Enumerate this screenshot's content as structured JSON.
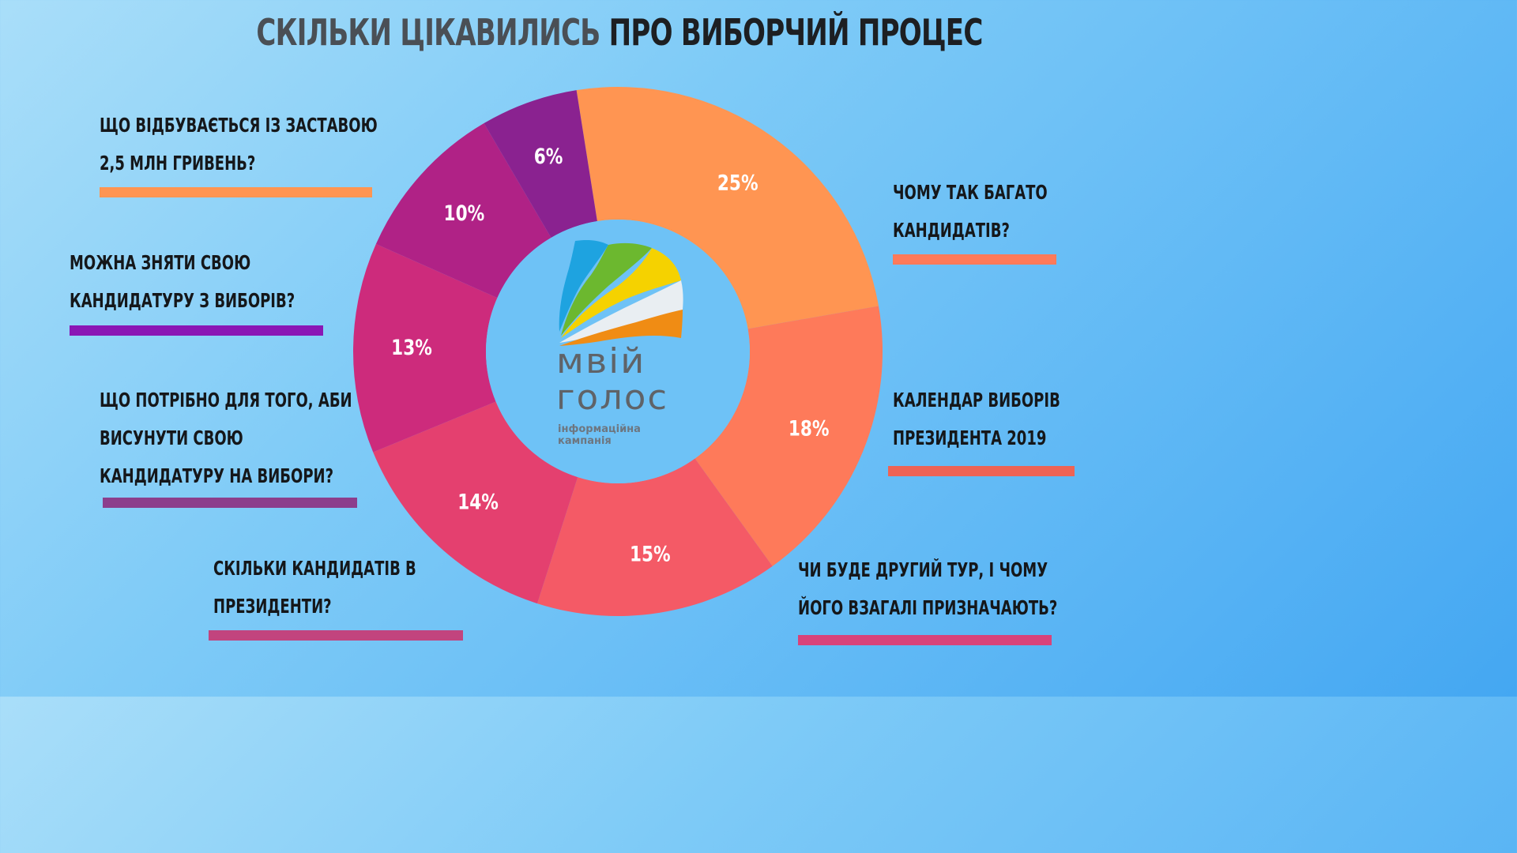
{
  "title": {
    "part1": "СКІЛЬКИ ЦІКАВИЛИСЬ",
    "part2": "ПРО ВИБОРЧИЙ ПРОЦЕС"
  },
  "logo": {
    "word1": "мвій",
    "word2": "голос",
    "sub1": "інформаційна",
    "sub2": "кампанія"
  },
  "chart_data": {
    "type": "pie",
    "donut": true,
    "legend_placement": "around",
    "slices": [
      {
        "label_lines": [
          "ЩО ВІДБУВАЄТЬСЯ ІЗ ЗАСТАВОЮ",
          "2,5 МЛН ГРИВЕНЬ?"
        ],
        "value": 25,
        "value_label": "25%",
        "color": "#ff9552",
        "bar_color": "#ff9552"
      },
      {
        "label_lines": [
          "ЧОМУ ТАК БАГАТО",
          "КАНДИДАТІВ?"
        ],
        "value": 18,
        "value_label": "18%",
        "color": "#fe7a5a",
        "bar_color": "#fe7a5a"
      },
      {
        "label_lines": [
          "КАЛЕНДАР ВИБОРІВ",
          "ПРЕЗИДЕНТА 2019"
        ],
        "value": 15,
        "value_label": "15%",
        "color": "#f45a66",
        "bar_color": "#ee6355"
      },
      {
        "label_lines": [
          "ЧИ БУДЕ ДРУГИЙ ТУР, І ЧОМУ",
          "ЙОГО ВЗАГАЛІ ПРИЗНАЧАЮТЬ?"
        ],
        "value": 14,
        "value_label": "14%",
        "color": "#e4406f",
        "bar_color": "#d8437a"
      },
      {
        "label_lines": [
          "СКІЛЬКИ КАНДИДАТІВ В",
          "ПРЕЗИДЕНТИ?"
        ],
        "value": 13,
        "value_label": "13%",
        "color": "#cd2b7c",
        "bar_color": "#c2447e"
      },
      {
        "label_lines": [
          "ЩО ПОТРІБНО ДЛЯ ТОГО, АБИ",
          "ВИСУНУТИ СВОЮ",
          "КАНДИДАТУРУ НА ВИБОРИ?"
        ],
        "value": 10,
        "value_label": "10%",
        "color": "#b02286",
        "bar_color": "#8c3e8c"
      },
      {
        "label_lines": [
          "МОЖНА ЗНЯТИ СВОЮ",
          "КАНДИДАТУРУ З ВИБОРІВ?"
        ],
        "value": 6,
        "value_label": "6%",
        "color": "#8a2290",
        "bar_color": "#8a16b5"
      }
    ]
  }
}
